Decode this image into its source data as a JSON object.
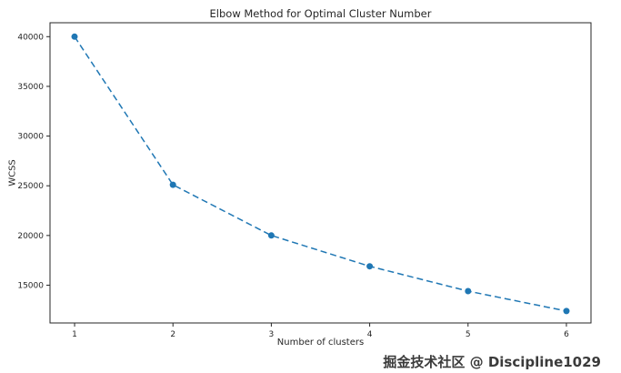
{
  "chart_data": {
    "type": "line",
    "title": "Elbow Method for Optimal Cluster Number",
    "xlabel": "Number of clusters",
    "ylabel": "WCSS",
    "x": [
      1,
      2,
      3,
      4,
      5,
      6
    ],
    "values": [
      40000,
      25100,
      20000,
      16900,
      14400,
      12400
    ],
    "series_name": "WCSS",
    "xlim": [
      0.75,
      6.25
    ],
    "ylim": [
      11200,
      41400
    ],
    "xticks": [
      1,
      2,
      3,
      4,
      5,
      6
    ],
    "yticks": [
      15000,
      20000,
      25000,
      30000,
      35000,
      40000
    ],
    "grid": false,
    "legend_position": "none",
    "line_style": "dashed",
    "marker": "circle",
    "line_color": "#1f77b4",
    "axis_color": "#262626"
  },
  "watermark": {
    "text": "掘金技术社区 @ Discipline1029"
  }
}
